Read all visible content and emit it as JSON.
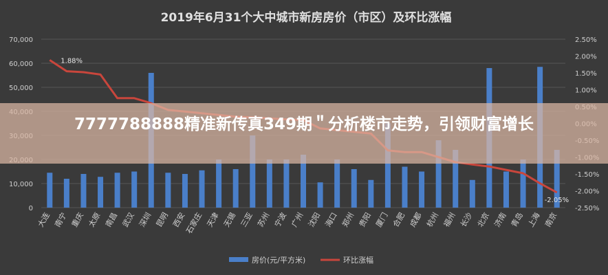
{
  "chart_data": {
    "type": "bar",
    "title": "2019年6月31个大中城市新房房价（市区）及环比涨幅",
    "categories": [
      "大连",
      "南宁",
      "重庆",
      "太原",
      "南昌",
      "武汉",
      "深圳",
      "昆明",
      "西安",
      "石家庄",
      "天津",
      "无锡",
      "三亚",
      "苏州",
      "宁波",
      "广州",
      "沈阳",
      "海口",
      "郑州",
      "贵阳",
      "厦门",
      "合肥",
      "成都",
      "杭州",
      "福州",
      "长沙",
      "北京",
      "济南",
      "青岛",
      "上海",
      "南京"
    ],
    "series": [
      {
        "name": "房价(元/平方米)",
        "kind": "bar",
        "axis": "left",
        "values": [
          14500,
          12000,
          14000,
          12800,
          14500,
          15000,
          56000,
          14500,
          14000,
          15500,
          20000,
          16000,
          30000,
          20000,
          20000,
          22000,
          10500,
          20000,
          16000,
          11500,
          35000,
          17000,
          15000,
          28000,
          24000,
          11500,
          58000,
          15000,
          20000,
          58500,
          24000
        ]
      },
      {
        "name": "环比涨幅",
        "kind": "line",
        "axis": "right",
        "values": [
          1.88,
          1.55,
          1.52,
          1.45,
          0.75,
          0.75,
          0.6,
          0.4,
          0.35,
          0.3,
          0.25,
          0.2,
          0.18,
          0.15,
          0.12,
          0.1,
          -0.15,
          -0.2,
          -0.25,
          -0.3,
          -0.8,
          -0.85,
          -0.85,
          -1.0,
          -1.15,
          -1.22,
          -1.28,
          -1.38,
          -1.48,
          -1.78,
          -2.05
        ]
      }
    ],
    "y_left": {
      "ylim": [
        0,
        70000
      ],
      "ticks": [
        "0",
        "10,000",
        "20,000",
        "30,000",
        "40,000",
        "50,000",
        "60,000",
        "70,000"
      ]
    },
    "y_right": {
      "ylim": [
        -2.5,
        2.5
      ],
      "ticks": [
        "-2.50%",
        "-2.00%",
        "-1.50%",
        "-1.00%",
        "-0.50%",
        "0.00%",
        "0.50%",
        "1.00%",
        "1.50%",
        "2.00%",
        "2.50%"
      ]
    },
    "annotations": [
      "1.88%",
      "-2.05%"
    ],
    "grid": true,
    "legend_position": "bottom",
    "colors": {
      "bar": "#4a7fc9",
      "line": "#c9463c",
      "background": "#3a3a3a",
      "grid": "#555555",
      "text": "#cfcfcf",
      "title": "#e0e0e0"
    }
  },
  "overlay": {
    "title": "7777788888精准新传真349期＂分析楼市走势，引领财富增长"
  }
}
